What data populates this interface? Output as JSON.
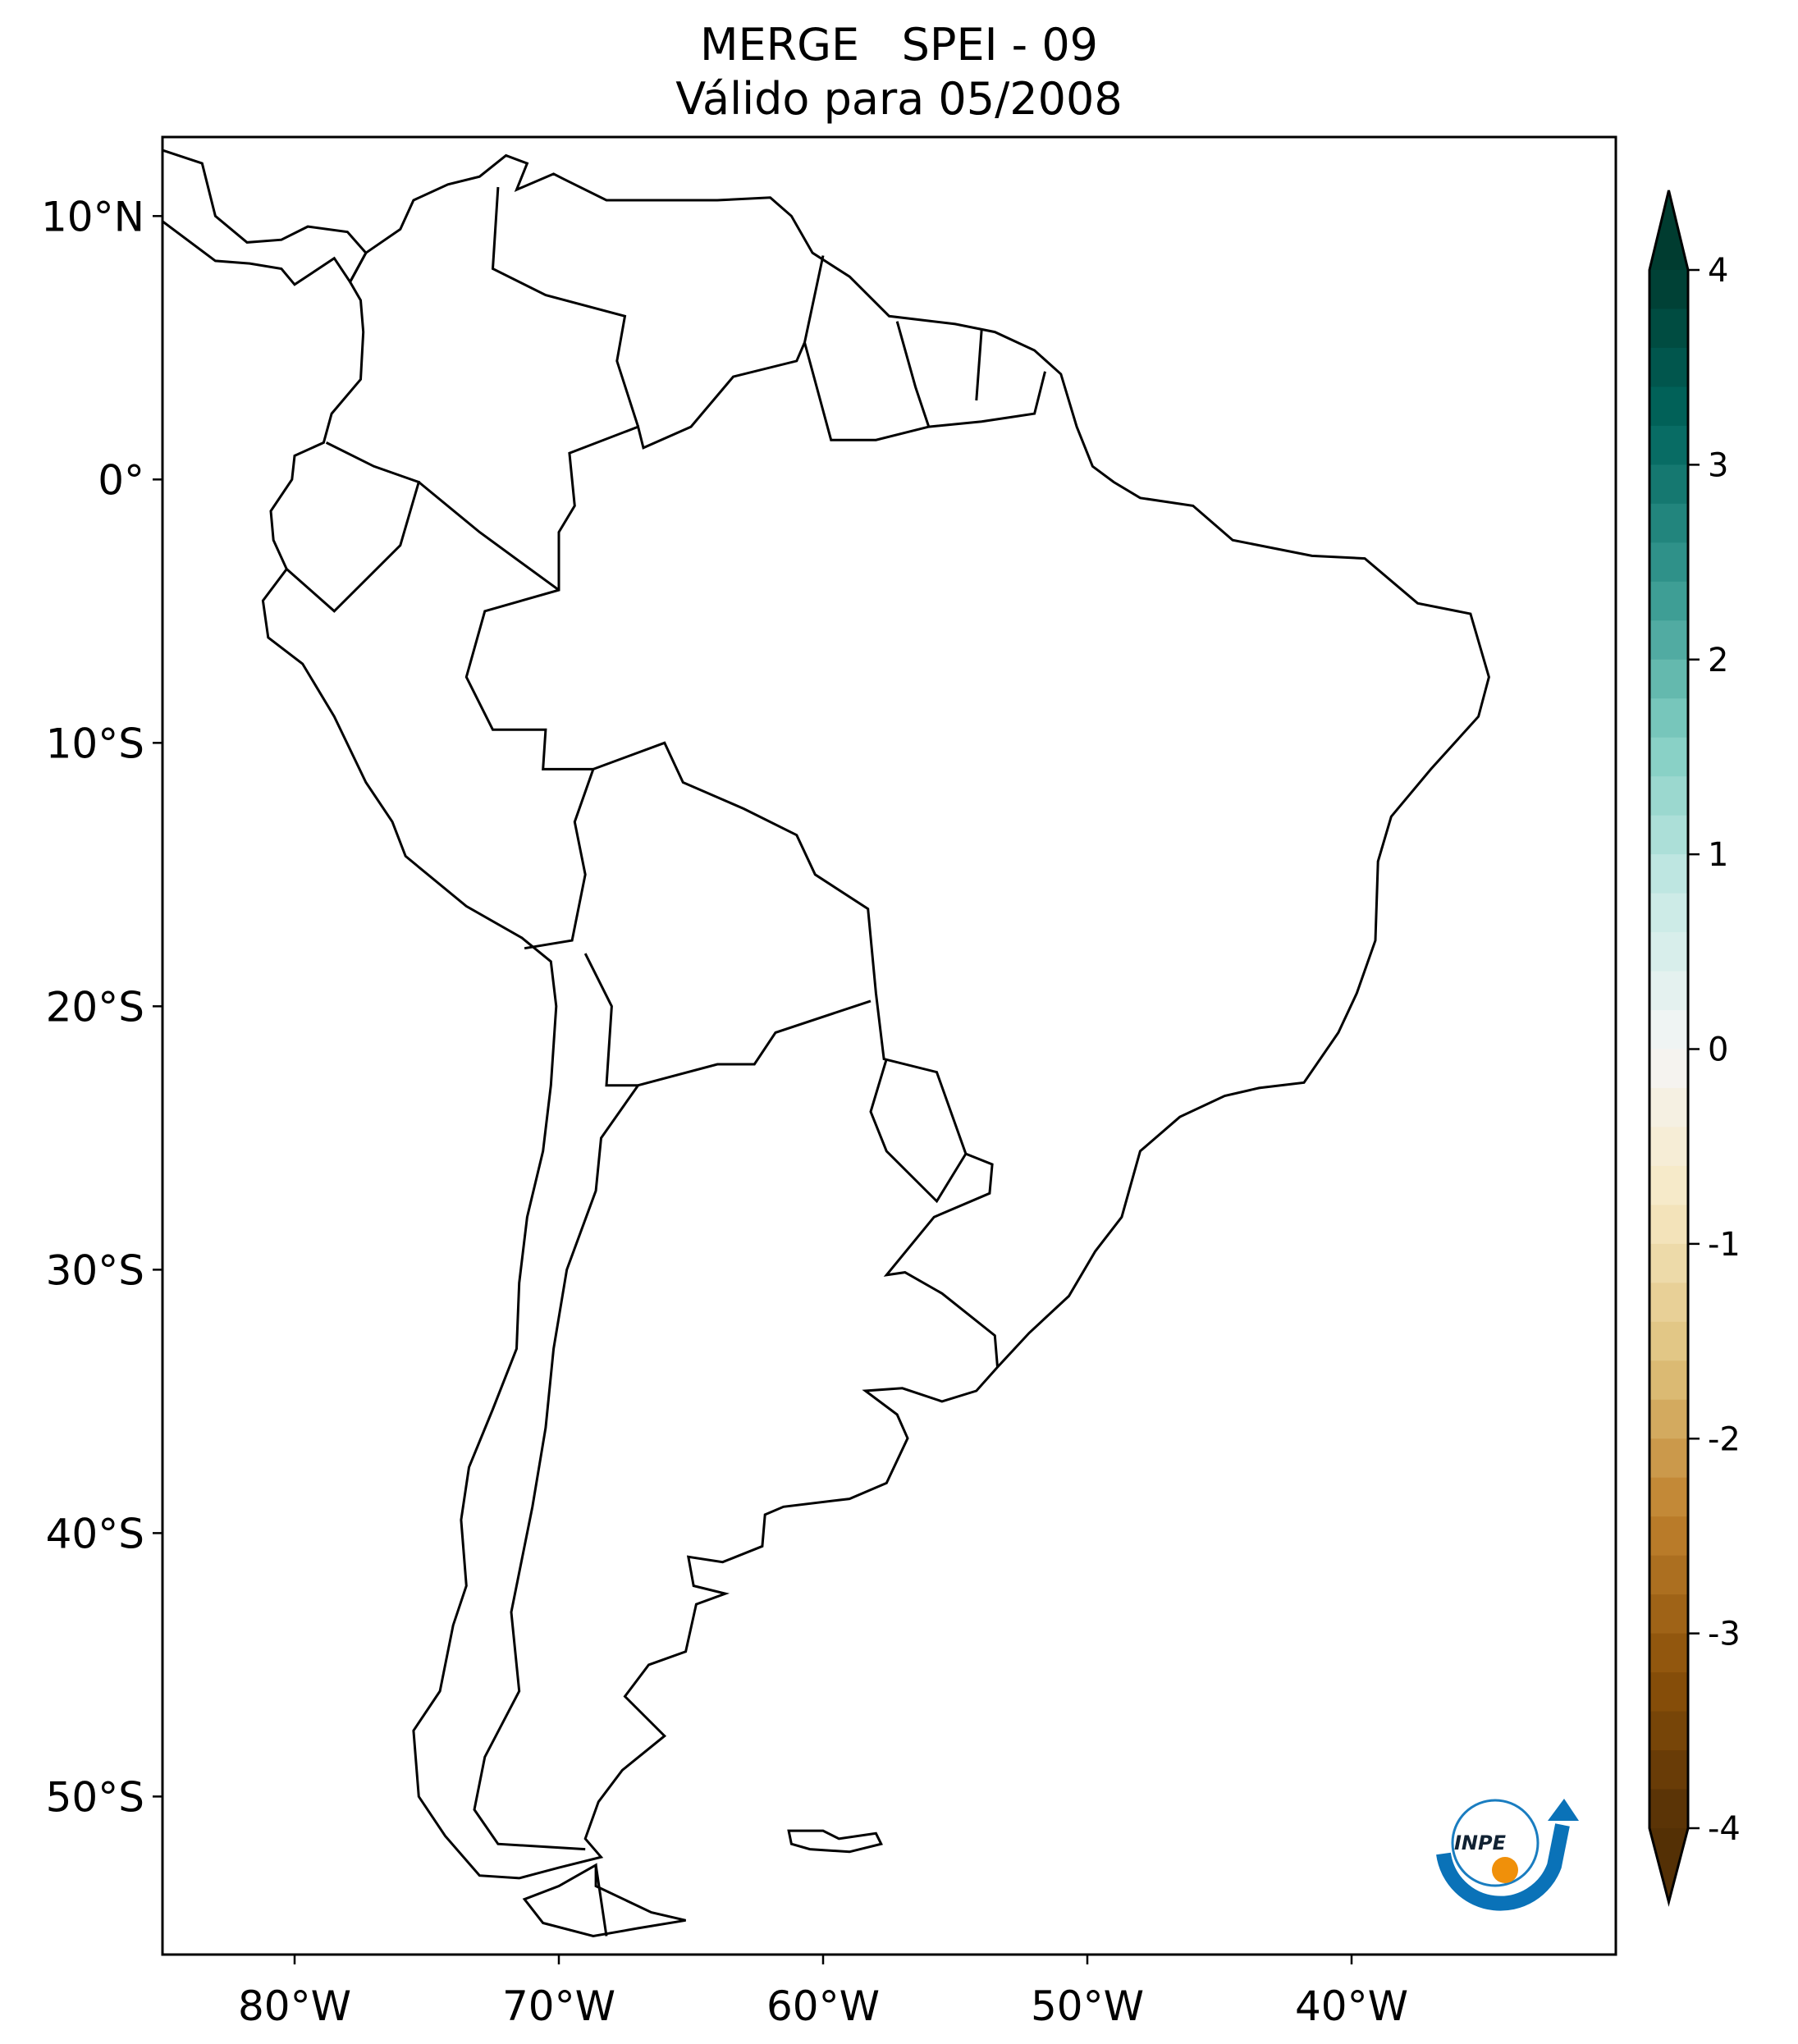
{
  "chart_data": {
    "type": "heatmap",
    "title": "MERGE   SPEI - 09",
    "subtitle": "Válido para 05/2008",
    "projection": "plate-carree",
    "lon_range": [
      -85,
      -30
    ],
    "lat_range": [
      -56,
      13
    ],
    "x_ticks": [
      {
        "value": -80,
        "label": "80°W"
      },
      {
        "value": -70,
        "label": "70°W"
      },
      {
        "value": -60,
        "label": "60°W"
      },
      {
        "value": -50,
        "label": "50°W"
      },
      {
        "value": -40,
        "label": "40°W"
      }
    ],
    "y_ticks": [
      {
        "value": 10,
        "label": "10°N"
      },
      {
        "value": 0,
        "label": "0°"
      },
      {
        "value": -10,
        "label": "10°S"
      },
      {
        "value": -20,
        "label": "20°S"
      },
      {
        "value": -30,
        "label": "30°S"
      },
      {
        "value": -40,
        "label": "40°S"
      },
      {
        "value": -50,
        "label": "50°S"
      }
    ],
    "colorbar": {
      "range": [
        -4,
        4
      ],
      "extend": "both",
      "colormap": "BrBG",
      "ticks": [
        {
          "value": 4,
          "label": "4"
        },
        {
          "value": 3,
          "label": "3"
        },
        {
          "value": 2,
          "label": "2"
        },
        {
          "value": 1,
          "label": "1"
        },
        {
          "value": 0,
          "label": "0"
        },
        {
          "value": -1,
          "label": "-1"
        },
        {
          "value": -2,
          "label": "-2"
        },
        {
          "value": -3,
          "label": "-3"
        },
        {
          "value": -4,
          "label": "-4"
        }
      ],
      "colors": [
        "#543005",
        "#8c510a",
        "#bf812d",
        "#dfc27d",
        "#f6e8c3",
        "#f5f5f5",
        "#c7eae5",
        "#80cdc1",
        "#35978f",
        "#01665e",
        "#003c30"
      ]
    },
    "logo_text": "INPE"
  }
}
